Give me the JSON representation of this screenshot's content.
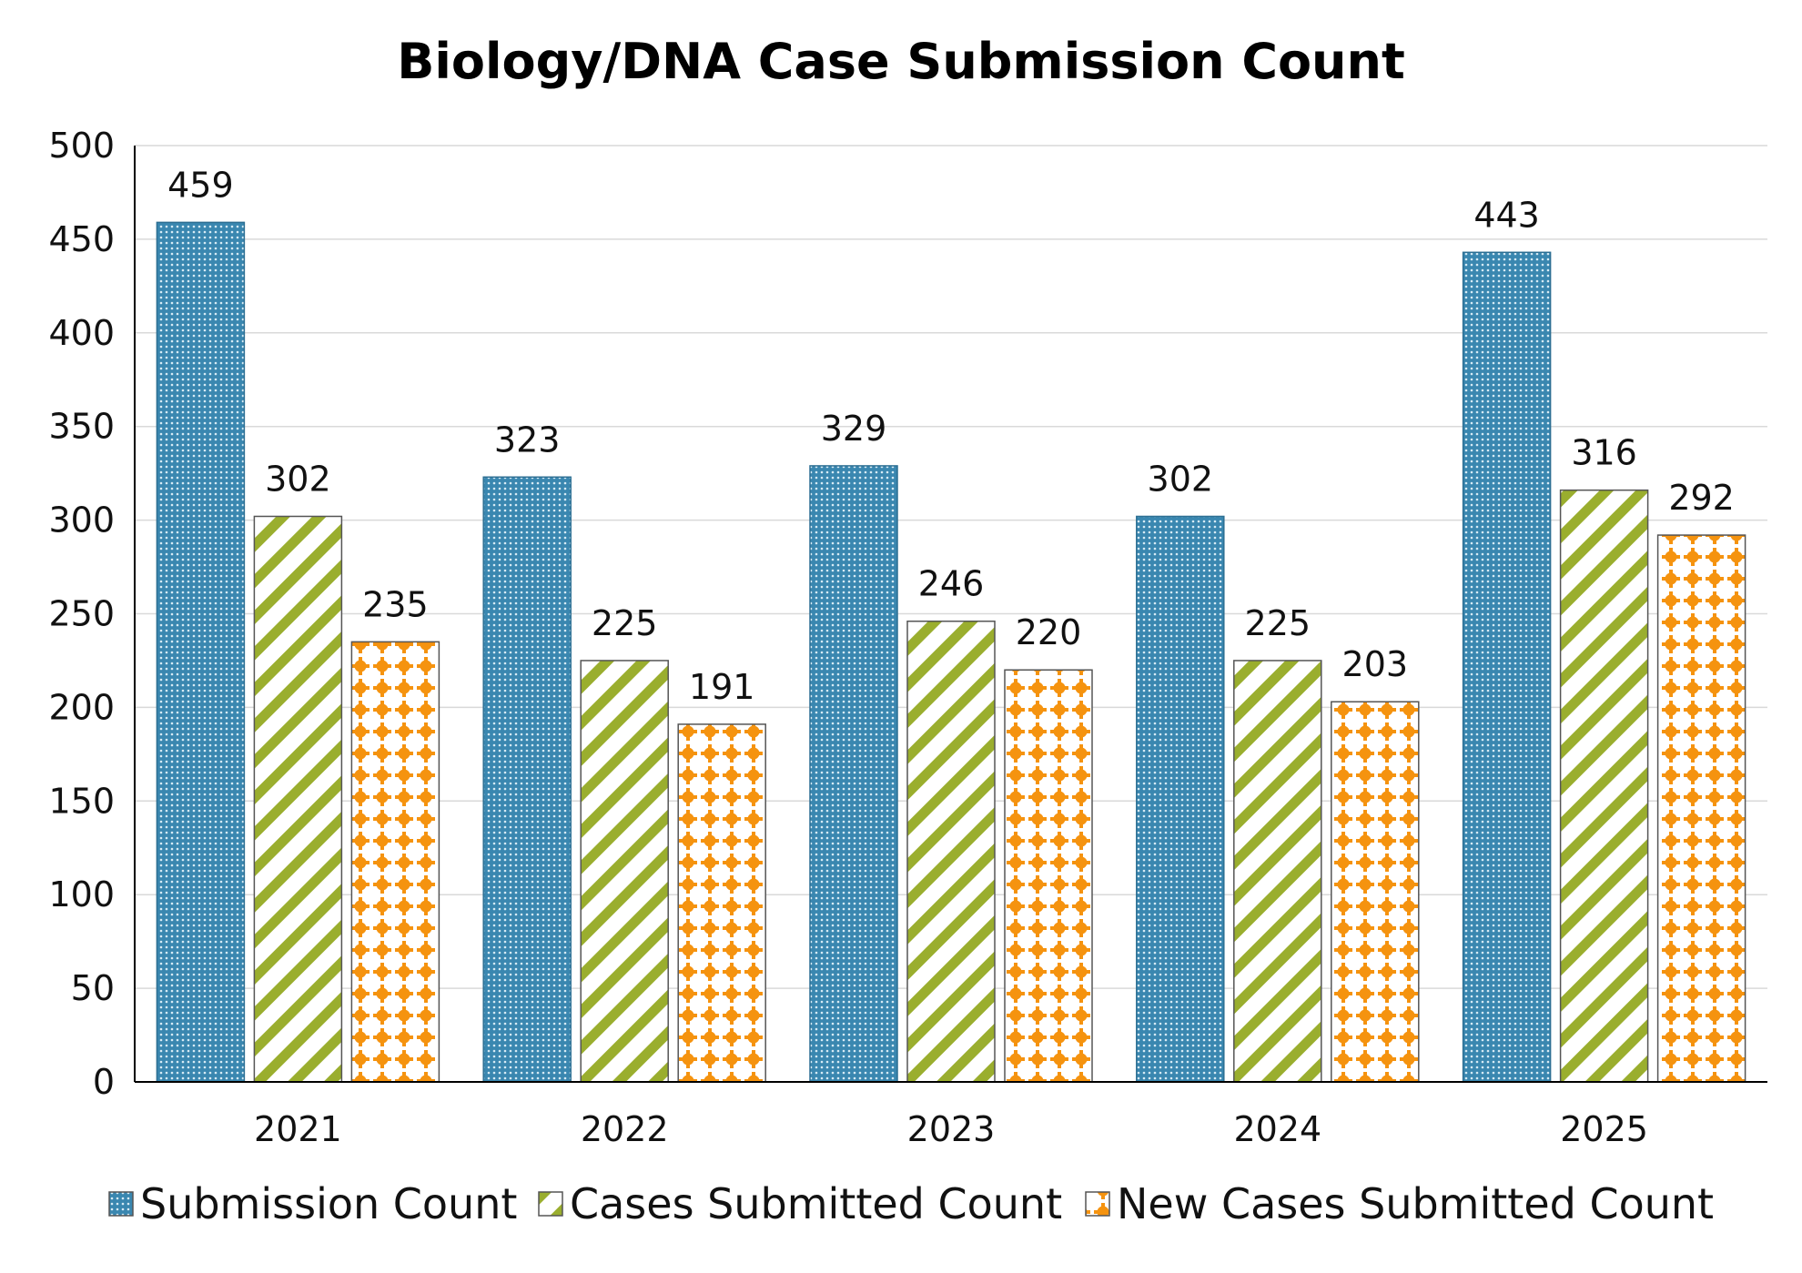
{
  "chart_data": {
    "type": "bar",
    "title": "Biology/DNA Case Submission Count",
    "categories": [
      "2021",
      "2022",
      "2023",
      "2024",
      "2025"
    ],
    "series": [
      {
        "name": "Submission Count",
        "values": [
          459,
          323,
          329,
          302,
          443
        ],
        "color": "#3a87b0",
        "pattern": "dots"
      },
      {
        "name": "Cases Submitted Count",
        "values": [
          302,
          225,
          246,
          225,
          316
        ],
        "color": "#9aae2e",
        "pattern": "diagonal-stripes"
      },
      {
        "name": "New Cases Submitted Count",
        "values": [
          235,
          191,
          220,
          203,
          292
        ],
        "color": "#f5930f",
        "pattern": "plus-dots"
      }
    ],
    "ylim": [
      0,
      500
    ],
    "yticks": [
      0,
      50,
      100,
      150,
      200,
      250,
      300,
      350,
      400,
      450,
      500
    ],
    "grid": true,
    "legend": "bottom",
    "data_labels": true
  }
}
